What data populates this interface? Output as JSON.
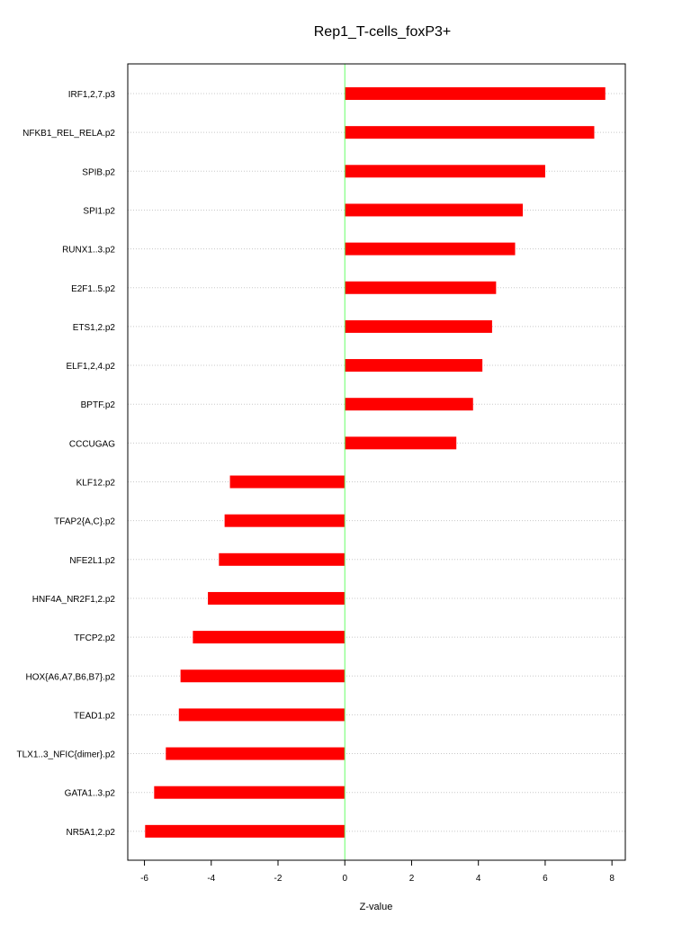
{
  "chart_data": {
    "type": "bar",
    "orientation": "horizontal",
    "title": "Rep1_T-cells_foxP3+",
    "xlabel": "Z-value",
    "ylabel": "",
    "xlim": [
      -6.5,
      8.4
    ],
    "xticks": [
      -6,
      -4,
      -2,
      0,
      2,
      4,
      6,
      8
    ],
    "grid": true,
    "bar_color": "#ff0000",
    "zero_line_color": "#66ff66",
    "categories": [
      "IRF1,2,7.p3",
      "NFKB1_REL_RELA.p2",
      "SPIB.p2",
      "SPI1.p2",
      "RUNX1..3.p2",
      "E2F1..5.p2",
      "ETS1,2.p2",
      "ELF1,2,4.p2",
      "BPTF.p2",
      "CCCUGAG",
      "KLF12.p2",
      "TFAP2{A,C}.p2",
      "NFE2L1.p2",
      "HNF4A_NR2F1,2.p2",
      "TFCP2.p2",
      "HOX{A6,A7,B6,B7}.p2",
      "TEAD1.p2",
      "TLX1..3_NFIC{dimer}.p2",
      "GATA1..3.p2",
      "NR5A1,2.p2"
    ],
    "values": [
      7.8,
      7.47,
      6.0,
      5.33,
      5.1,
      4.53,
      4.41,
      4.12,
      3.84,
      3.34,
      -3.44,
      -3.6,
      -3.77,
      -4.1,
      -4.55,
      -4.92,
      -4.97,
      -5.36,
      -5.71,
      -5.98
    ]
  }
}
